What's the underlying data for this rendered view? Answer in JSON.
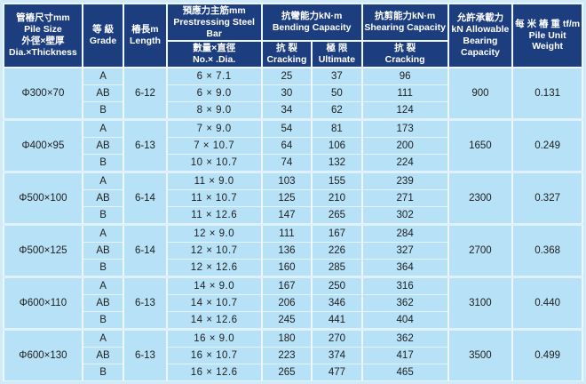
{
  "table": {
    "header": {
      "pile_size": "管樁尺寸mm\nPile Size\n外徑×壁厚\nDia.×Thickness",
      "grade": "等 級\nGrade",
      "length": "樁長m\nLength",
      "steel_bar_top": "預應力主筋mm\nPrestressing Steel Bar",
      "steel_bar_bottom": "數量×直徑\nNo.× .Dia.",
      "bending": "抗彎能力kN·m\nBending Capacity",
      "bending_cracking": "抗  裂\nCracking",
      "bending_ultimate": "極  限\nUltimate",
      "shearing": "抗剪能力kN·m\nShearing Capacity",
      "shearing_cracking": "抗  裂\nCracking",
      "bearing": "允許承載力\nkN Allowable\nBearing\nCapacity",
      "unit_weight": "每 米 樁 重 tf/m\nPile Unit Weight"
    },
    "groups": [
      {
        "pile_size": "Φ300×70",
        "length": "6-12",
        "bearing": "900",
        "unit_weight": "0.131",
        "rows": [
          {
            "grade": "A",
            "bars": "6 × 7.1",
            "cracking": "25",
            "ultimate": "37",
            "shear": "96"
          },
          {
            "grade": "AB",
            "bars": "6 × 9.0",
            "cracking": "30",
            "ultimate": "50",
            "shear": "111"
          },
          {
            "grade": "B",
            "bars": "8 × 9.0",
            "cracking": "34",
            "ultimate": "62",
            "shear": "124"
          }
        ]
      },
      {
        "pile_size": "Φ400×95",
        "length": "6-13",
        "bearing": "1650",
        "unit_weight": "0.249",
        "rows": [
          {
            "grade": "A",
            "bars": "7 × 9.0",
            "cracking": "54",
            "ultimate": "81",
            "shear": "173"
          },
          {
            "grade": "AB",
            "bars": "7 × 10.7",
            "cracking": "64",
            "ultimate": "106",
            "shear": "200"
          },
          {
            "grade": "B",
            "bars": "10 × 10.7",
            "cracking": "74",
            "ultimate": "132",
            "shear": "224"
          }
        ]
      },
      {
        "pile_size": "Φ500×100",
        "length": "6-14",
        "bearing": "2300",
        "unit_weight": "0.327",
        "rows": [
          {
            "grade": "A",
            "bars": "11 × 9.0",
            "cracking": "103",
            "ultimate": "155",
            "shear": "239"
          },
          {
            "grade": "AB",
            "bars": "11 × 10.7",
            "cracking": "125",
            "ultimate": "210",
            "shear": "271"
          },
          {
            "grade": "B",
            "bars": "11 × 12.6",
            "cracking": "147",
            "ultimate": "265",
            "shear": "302"
          }
        ]
      },
      {
        "pile_size": "Φ500×125",
        "length": "6-14",
        "bearing": "2700",
        "unit_weight": "0.368",
        "rows": [
          {
            "grade": "A",
            "bars": "12 × 9.0",
            "cracking": "111",
            "ultimate": "167",
            "shear": "284"
          },
          {
            "grade": "AB",
            "bars": "12 × 10.7",
            "cracking": "136",
            "ultimate": "226",
            "shear": "327"
          },
          {
            "grade": "B",
            "bars": "12 × 12.6",
            "cracking": "160",
            "ultimate": "285",
            "shear": "364"
          }
        ]
      },
      {
        "pile_size": "Φ600×110",
        "length": "6-13",
        "bearing": "3100",
        "unit_weight": "0.440",
        "rows": [
          {
            "grade": "A",
            "bars": "14 × 9.0",
            "cracking": "167",
            "ultimate": "250",
            "shear": "316"
          },
          {
            "grade": "AB",
            "bars": "14 × 10.7",
            "cracking": "206",
            "ultimate": "346",
            "shear": "362"
          },
          {
            "grade": "B",
            "bars": "14 × 12.6",
            "cracking": "245",
            "ultimate": "441",
            "shear": "404"
          }
        ]
      },
      {
        "pile_size": "Φ600×130",
        "length": "6-13",
        "bearing": "3500",
        "unit_weight": "0.499",
        "rows": [
          {
            "grade": "A",
            "bars": "16 × 9.0",
            "cracking": "180",
            "ultimate": "270",
            "shear": "362"
          },
          {
            "grade": "AB",
            "bars": "16 × 10.7",
            "cracking": "223",
            "ultimate": "374",
            "shear": "417"
          },
          {
            "grade": "B",
            "bars": "16 × 12.6",
            "cracking": "265",
            "ultimate": "477",
            "shear": "465"
          }
        ]
      }
    ]
  },
  "colors": {
    "header_bg": "#1d3e7e",
    "header_text": "#ffffff",
    "cell_bg": "#b7e1f6",
    "page_bg": "#cfeaf8",
    "border": "#eef7fd",
    "cell_text": "#1e1e1e"
  }
}
